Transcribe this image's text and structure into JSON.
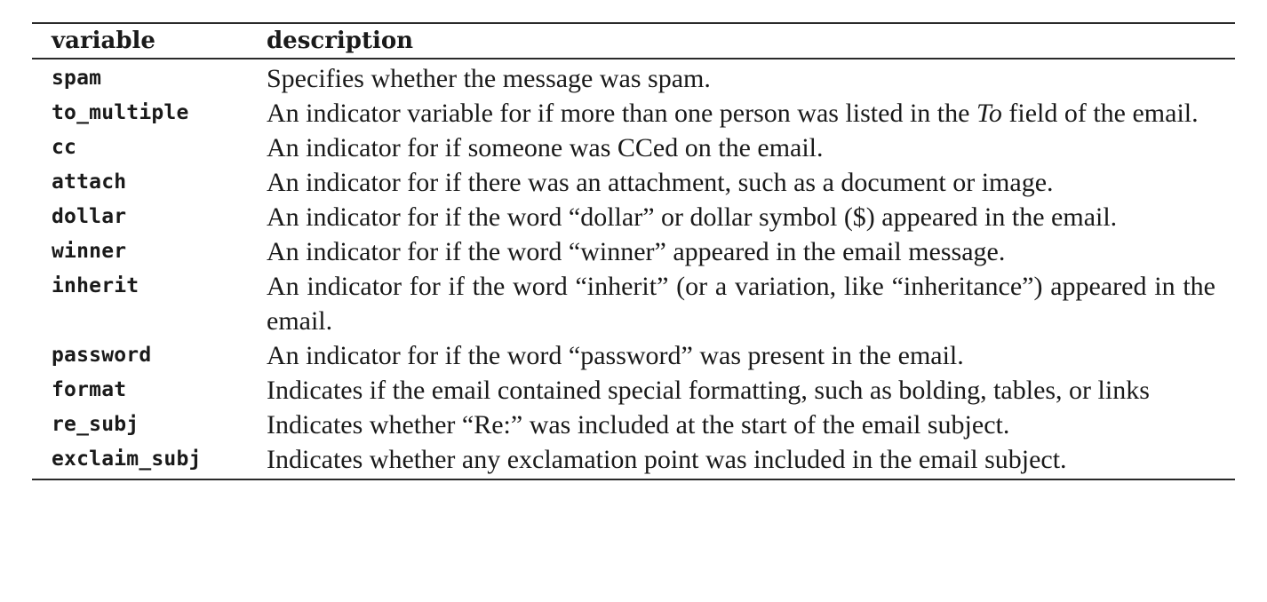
{
  "table": {
    "headers": {
      "variable": "variable",
      "description": "description"
    },
    "rows": [
      {
        "variable": "spam",
        "description": "Specifies whether the message was spam."
      },
      {
        "variable": "to_multiple",
        "description": "An indicator variable for if more than one person was listed in the To field of the email."
      },
      {
        "variable": "cc",
        "description": "An indicator for if someone was CCed on the email."
      },
      {
        "variable": "attach",
        "description": "An indicator for if there was an attachment, such as a document or image."
      },
      {
        "variable": "dollar",
        "description": "An indicator for if the word “dollar” or dollar symbol ($) appeared in the email."
      },
      {
        "variable": "winner",
        "description": "An indicator for if the word “winner” appeared in the email message."
      },
      {
        "variable": "inherit",
        "description": "An indicator for if the word “inherit” (or a variation, like “inheritance”) appeared in the email."
      },
      {
        "variable": "password",
        "description": "An indicator for if the word “password” was present in the email."
      },
      {
        "variable": "format",
        "description": "Indicates if the email contained special formatting, such as bolding, tables, or links"
      },
      {
        "variable": "re_subj",
        "description": "Indicates whether “Re:” was included at the start of the email subject."
      },
      {
        "variable": "exclaim_subj",
        "description": "Indicates whether any exclamation point was included in the email subject."
      }
    ]
  }
}
